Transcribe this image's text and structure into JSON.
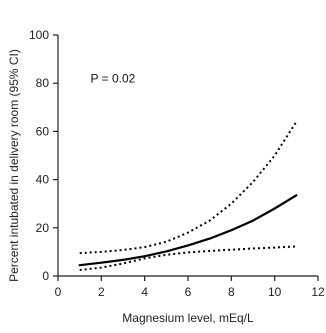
{
  "chart_data": {
    "type": "line",
    "title": "",
    "xlabel": "Magnesium level, mEq/L",
    "ylabel": "Percent intubated in delivery room (95% CI)",
    "xlim": [
      0,
      12
    ],
    "ylim": [
      0,
      100
    ],
    "x_ticks": [
      "0",
      "2",
      "4",
      "6",
      "8",
      "10",
      "12"
    ],
    "y_ticks": [
      "0",
      "20",
      "40",
      "60",
      "80",
      "100"
    ],
    "grid": false,
    "legend": "none",
    "annotations": [
      {
        "text": "P = 0.02",
        "x": 1.5,
        "y": 82
      }
    ],
    "series": [
      {
        "role": "estimate",
        "line_style": "solid",
        "x": [
          1,
          2,
          3,
          4,
          5,
          6,
          7,
          8,
          9,
          10,
          11
        ],
        "y": [
          4.5,
          5.5,
          6.7,
          8.2,
          10.2,
          12.7,
          15.5,
          19.0,
          23.0,
          28.0,
          33.5
        ]
      },
      {
        "role": "upper_ci",
        "line_style": "dotted",
        "x": [
          1,
          2,
          3,
          4,
          5,
          6,
          7,
          8,
          9,
          10,
          11
        ],
        "y": [
          9.5,
          10.0,
          10.8,
          12.0,
          14.2,
          18.0,
          23.0,
          30.0,
          39.0,
          50.0,
          64.0
        ]
      },
      {
        "role": "lower_ci",
        "line_style": "dotted",
        "x": [
          1,
          2,
          3,
          4,
          5,
          6,
          7,
          8,
          9,
          10,
          11
        ],
        "y": [
          2.5,
          3.5,
          5.2,
          7.3,
          8.8,
          9.8,
          10.4,
          10.9,
          11.4,
          11.8,
          12.3
        ]
      }
    ]
  }
}
